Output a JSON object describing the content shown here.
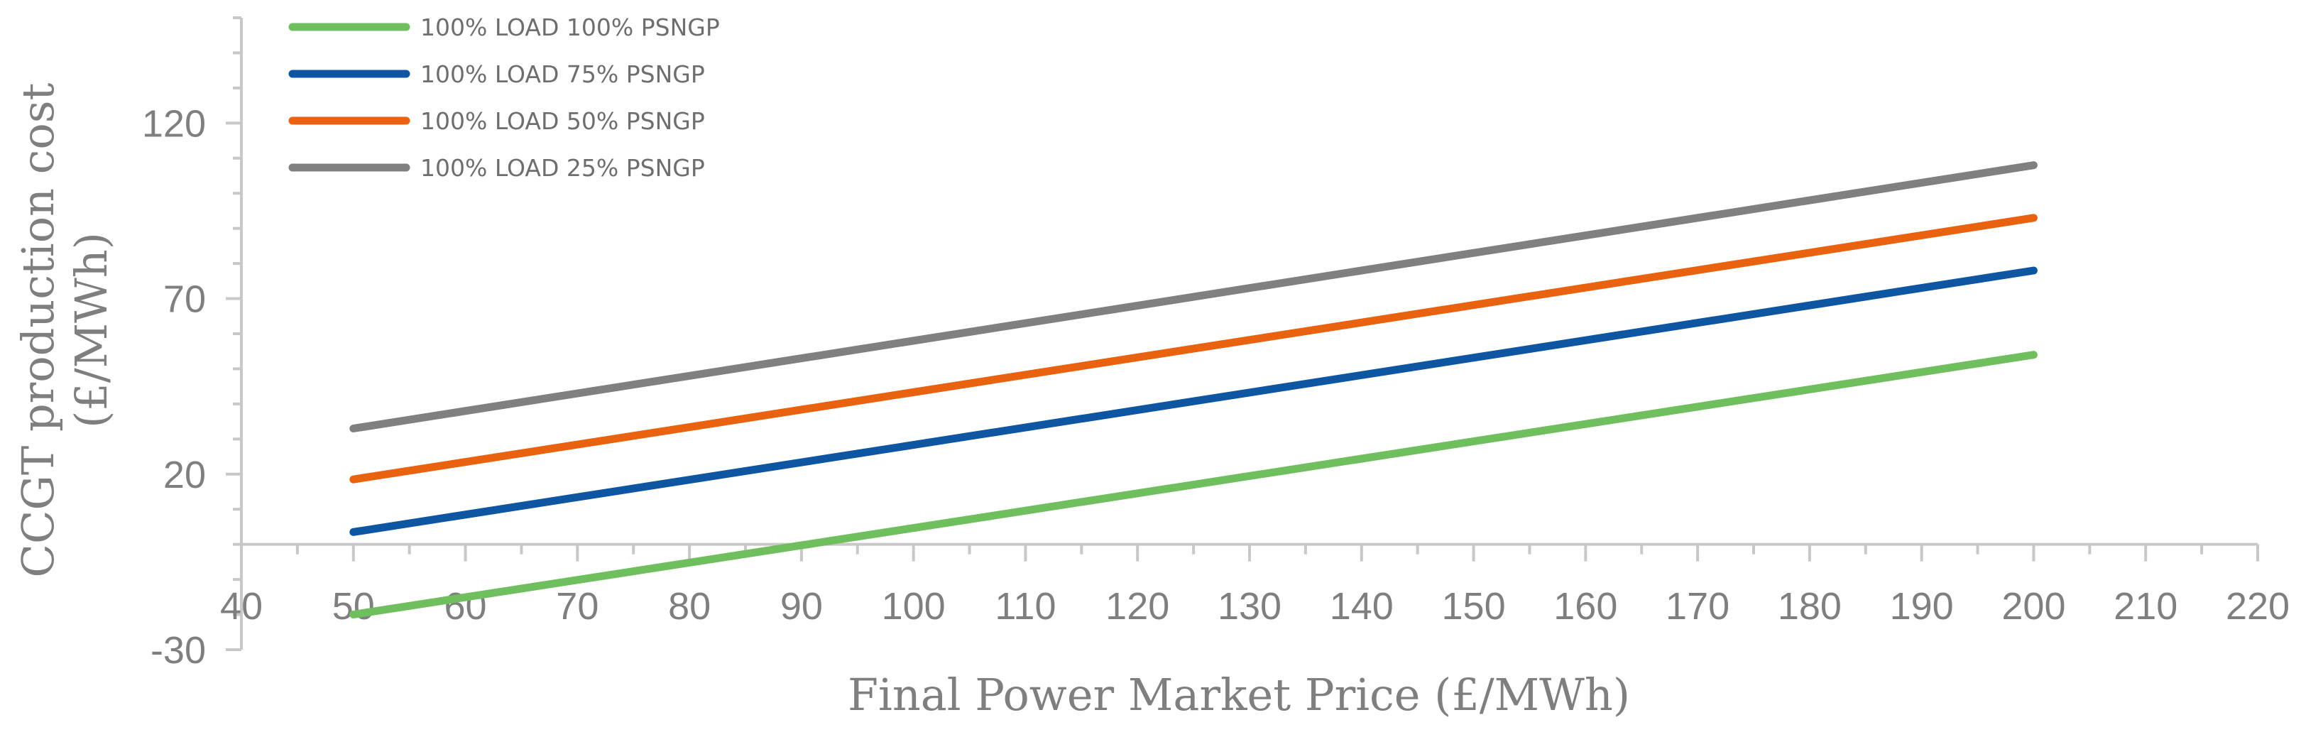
{
  "chart_data": {
    "type": "line",
    "title": "",
    "xlabel": "Final Power Market Price (£/MWh)",
    "ylabel_line1": "CCGT production cost",
    "ylabel_line2": "(£/MWh)",
    "xlim": [
      40,
      220
    ],
    "ylim": [
      -30,
      150
    ],
    "x_ticks": [
      40,
      50,
      60,
      70,
      80,
      90,
      100,
      110,
      120,
      130,
      140,
      150,
      160,
      170,
      180,
      190,
      200,
      210,
      220
    ],
    "y_ticks": [
      -30,
      20,
      70,
      120
    ],
    "x_axis_crosses_y_at": 0,
    "grid": false,
    "legend_position": "top-left",
    "series": [
      {
        "name": "100% LOAD 100% PSNGP",
        "color": "#70bf5f",
        "x": [
          50,
          200
        ],
        "y": [
          -20,
          54
        ]
      },
      {
        "name": "100% LOAD 75% PSNGP",
        "color": "#0f56a2",
        "x": [
          50,
          200
        ],
        "y": [
          3.5,
          78
        ]
      },
      {
        "name": "100% LOAD 50% PSNGP",
        "color": "#e8620f",
        "x": [
          50,
          200
        ],
        "y": [
          18.5,
          93
        ]
      },
      {
        "name": "100% LOAD 25% PSNGP",
        "color": "#808080",
        "x": [
          50,
          200
        ],
        "y": [
          33,
          108
        ]
      }
    ]
  }
}
